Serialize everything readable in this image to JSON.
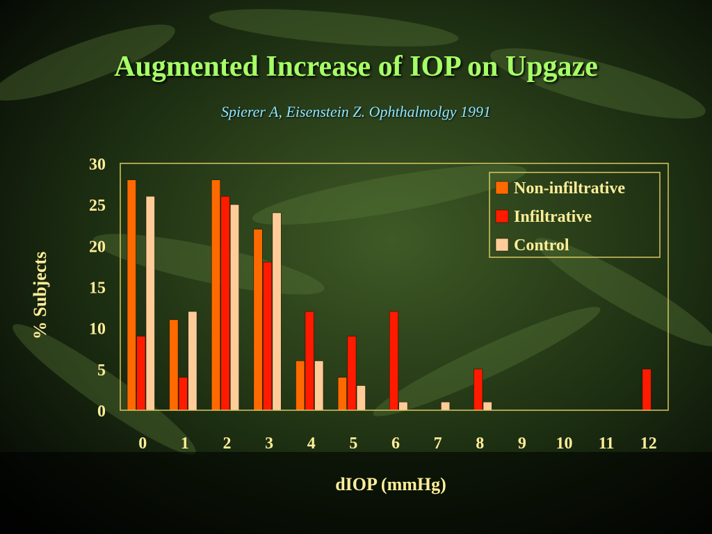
{
  "slide": {
    "title": "Augmented Increase of IOP on Upgaze",
    "subtitle": "Spierer A, Eisenstein Z. Ophthalmolgy 1991"
  },
  "colors": {
    "text": "#ffee99",
    "frame": "#d9c860",
    "non_infiltrative": "#ff6a00",
    "infiltrative": "#ff1a00",
    "control": "#ffcc99"
  },
  "chart_data": {
    "type": "bar",
    "title": "",
    "xlabel": "dIOP (mmHg)",
    "ylabel": "% Subjects",
    "categories": [
      "0",
      "1",
      "2",
      "3",
      "4",
      "5",
      "6",
      "7",
      "8",
      "9",
      "10",
      "11",
      "12"
    ],
    "ylim": [
      0,
      30
    ],
    "yticks": [
      "0",
      "5",
      "10",
      "15",
      "20",
      "25",
      "30"
    ],
    "grid": false,
    "legend_position": "top-right",
    "series": [
      {
        "name": "Non-infiltrative",
        "color": "#ff6a00",
        "values": [
          28,
          11,
          28,
          22,
          6,
          4,
          0,
          0,
          0,
          0,
          0,
          0,
          0
        ]
      },
      {
        "name": "Infiltrative",
        "color": "#ff1a00",
        "values": [
          9,
          4,
          26,
          18,
          12,
          9,
          12,
          0,
          5,
          0,
          0,
          0,
          5
        ]
      },
      {
        "name": "Control",
        "color": "#ffcc99",
        "values": [
          26,
          12,
          25,
          24,
          6,
          3,
          1,
          1,
          1,
          0,
          0,
          0,
          0
        ]
      }
    ]
  }
}
